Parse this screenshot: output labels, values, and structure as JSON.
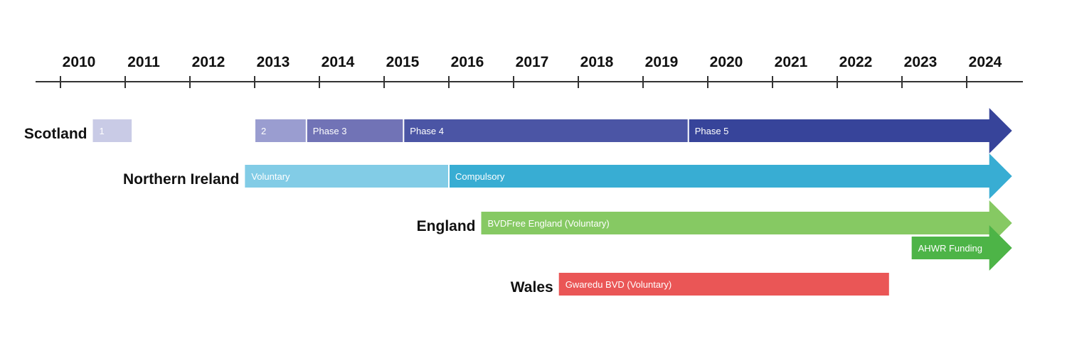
{
  "years": [
    "2010",
    "2011",
    "2012",
    "2013",
    "2014",
    "2015",
    "2016",
    "2017",
    "2018",
    "2019",
    "2020",
    "2021",
    "2022",
    "2023",
    "2024"
  ],
  "rows": [
    {
      "region": "Scotland",
      "segments": [
        {
          "label": "1",
          "start": 2010.5,
          "end": 2011.1,
          "color": "#c9cbe6"
        },
        {
          "label": "2",
          "start": 2013.0,
          "end": 2013.8,
          "color": "#9a9dd0"
        },
        {
          "label": "Phase 3",
          "start": 2013.8,
          "end": 2015.3,
          "color": "#7173b6"
        },
        {
          "label": "Phase 4",
          "start": 2015.3,
          "end": 2019.7,
          "color": "#4b55a5"
        },
        {
          "label": "Phase 5",
          "start": 2019.7,
          "end": 2024.7,
          "color": "#37449a",
          "arrow": true
        }
      ]
    },
    {
      "region": "Northern Ireland",
      "segments": [
        {
          "label": "Voluntary",
          "start": 2012.85,
          "end": 2016.0,
          "color": "#82cce6"
        },
        {
          "label": "Compulsory",
          "start": 2016.0,
          "end": 2024.7,
          "color": "#38add3",
          "arrow": true
        }
      ]
    },
    {
      "region": "England",
      "segments": [
        {
          "label": "BVDFree England (Voluntary)",
          "start": 2016.5,
          "end": 2024.7,
          "color": "#86c963",
          "arrow": true
        }
      ]
    },
    {
      "region": "",
      "segments": [
        {
          "label": "AHWR Funding",
          "start": 2023.15,
          "end": 2024.7,
          "color": "#4db447",
          "arrow": true
        }
      ]
    },
    {
      "region": "Wales",
      "segments": [
        {
          "label": "Gwaredu BVD (Voluntary)",
          "start": 2017.7,
          "end": 2022.8,
          "color": "#ea5656"
        }
      ]
    }
  ]
}
